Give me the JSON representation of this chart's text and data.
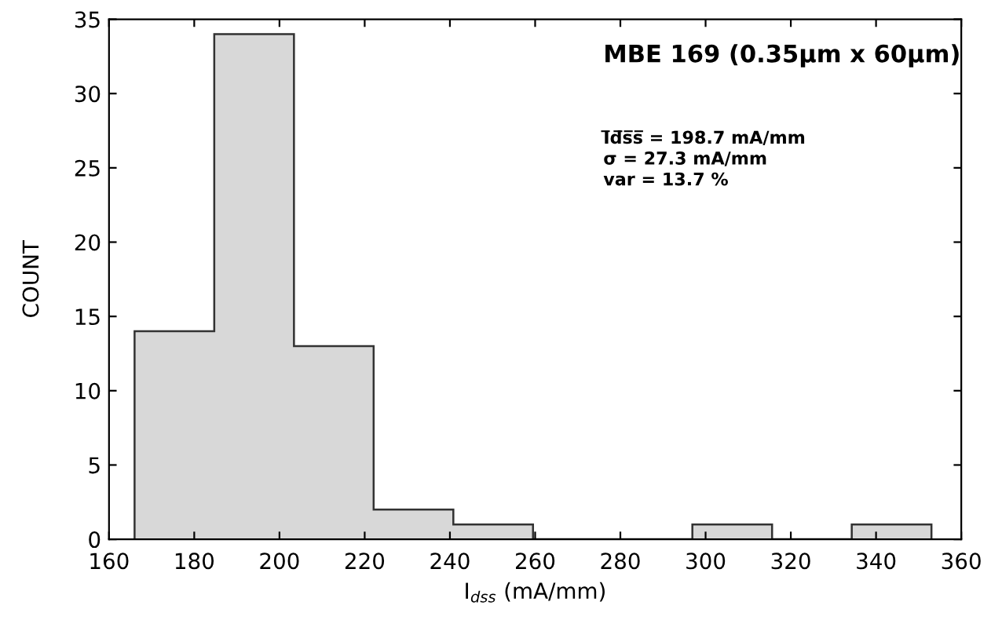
{
  "chart_data": {
    "type": "histogram",
    "bins": [
      166.0,
      184.7,
      203.4,
      222.1,
      240.8,
      259.5,
      278.2,
      296.9,
      315.6,
      334.3,
      353.0
    ],
    "values": [
      14,
      34,
      13,
      2,
      1,
      0,
      0,
      1,
      0,
      1
    ],
    "color": "#d8d8d8",
    "xlabel": "I$_{dss}$ (mA/mm)",
    "ylabel": "COUNT",
    "annotations": [
      "MBE 169 (0.35μm x 60μm)",
      "I̅d̅s̅s̅ = 198.7 mA/mm\nσ = 27.3 mA/mm\nvar = 13.7 %"
    ],
    "xlim": [
      160,
      360
    ],
    "xticks": [
      160,
      180,
      200,
      220,
      240,
      260,
      280,
      300,
      320,
      340,
      360
    ],
    "ylim": [
      0,
      35
    ],
    "yticks": [
      0,
      5,
      10,
      15,
      20,
      25,
      30,
      35
    ],
    "grid": false,
    "legend": false
  }
}
